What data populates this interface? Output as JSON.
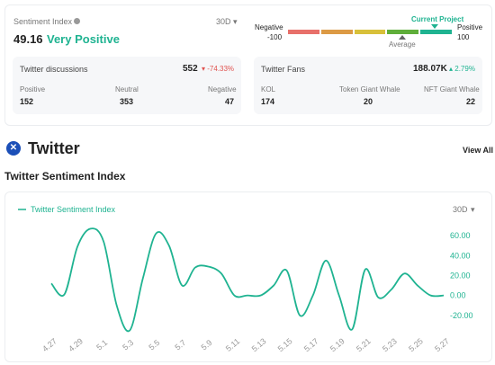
{
  "sentiment": {
    "title": "Sentiment Index",
    "period": "30D",
    "score": "49.16",
    "label": "Very Positive",
    "gauge": {
      "negative": "Negative",
      "min": "-100",
      "positive": "Positive",
      "max": "100",
      "current": "Current Project",
      "average": "Average"
    }
  },
  "discussions": {
    "title": "Twitter discussions",
    "total": "552",
    "change": "-74.33%",
    "items": [
      {
        "label": "Positive",
        "value": "152"
      },
      {
        "label": "Neutral",
        "value": "353"
      },
      {
        "label": "Negative",
        "value": "47"
      }
    ]
  },
  "fans": {
    "title": "Twitter Fans",
    "total": "188.07K",
    "change": "2.79%",
    "items": [
      {
        "label": "KOL",
        "value": "174"
      },
      {
        "label": "Token Giant Whale",
        "value": "20"
      },
      {
        "label": "NFT Giant Whale",
        "value": "22"
      }
    ]
  },
  "section": {
    "title": "Twitter",
    "link": "View All",
    "subtitle": "Twitter Sentiment Index"
  },
  "chart_data": {
    "type": "line",
    "period": "30D",
    "categories": [
      "4.27",
      null,
      "4.29",
      null,
      "5.1",
      null,
      "5.3",
      null,
      "5.5",
      null,
      "5.7",
      null,
      "5.9",
      null,
      "5.11",
      null,
      "5.13",
      null,
      "5.15",
      null,
      "5.17",
      null,
      "5.19",
      null,
      "5.21",
      null,
      "5.23",
      null,
      "5.25",
      null,
      "5.27"
    ],
    "series": [
      {
        "name": "Twitter Sentiment Index",
        "color": "#1fb391",
        "values": [
          12,
          1,
          49,
          67,
          54,
          -10,
          -35,
          17,
          62,
          50,
          10,
          28,
          29,
          22,
          0,
          0,
          0,
          10,
          25,
          -20,
          0,
          35,
          0,
          -34,
          26,
          -2,
          6,
          22,
          10,
          0,
          0
        ]
      }
    ],
    "ylim": [
      -40,
      70
    ],
    "yticks": [
      {
        "value": 60,
        "label": "60.00"
      },
      {
        "value": 40,
        "label": "40.00"
      },
      {
        "value": 20,
        "label": "20.00"
      },
      {
        "value": 0,
        "label": "0.00"
      },
      {
        "value": -20,
        "label": "-20.00"
      }
    ],
    "grid": false
  }
}
